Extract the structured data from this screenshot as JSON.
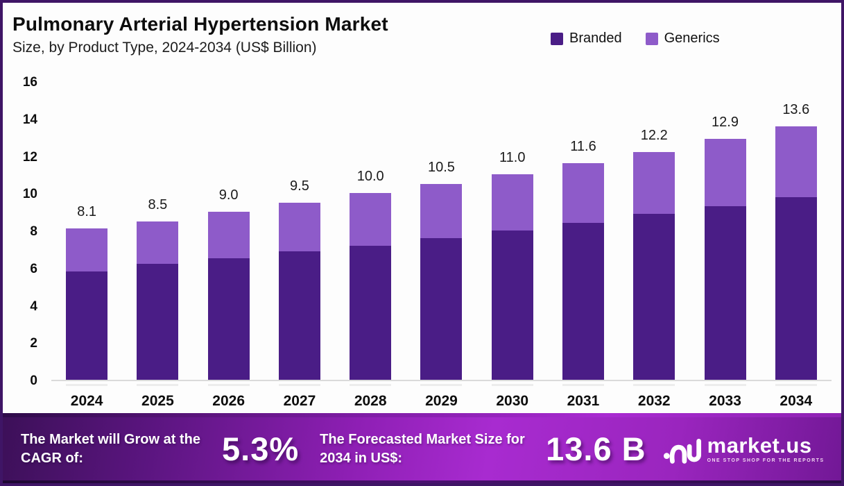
{
  "header": {
    "title": "Pulmonary Arterial Hypertension Market",
    "subtitle": "Size, by Product Type, 2024-2034 (US$ Billion)"
  },
  "colors": {
    "branded": "#4A1D86",
    "generics": "#8E5BC9",
    "frame_border": "#3F1566",
    "banner_mid": "#A82BD0"
  },
  "chart_data": {
    "type": "bar",
    "stacked": true,
    "title": "Pulmonary Arterial Hypertension Market Size, by Product Type, 2024-2034 (US$ Billion)",
    "categories": [
      "2024",
      "2025",
      "2026",
      "2027",
      "2028",
      "2029",
      "2030",
      "2031",
      "2032",
      "2033",
      "2034"
    ],
    "series": [
      {
        "name": "Branded",
        "color": "#4A1D86",
        "values": [
          5.8,
          6.2,
          6.5,
          6.9,
          7.2,
          7.6,
          8.0,
          8.4,
          8.9,
          9.3,
          9.8
        ]
      },
      {
        "name": "Generics",
        "color": "#8E5BC9",
        "values": [
          2.3,
          2.3,
          2.5,
          2.6,
          2.8,
          2.9,
          3.0,
          3.2,
          3.3,
          3.6,
          3.8
        ]
      }
    ],
    "total_labels": [
      "8.1",
      "8.5",
      "9.0",
      "9.5",
      "10.0",
      "10.5",
      "11.0",
      "11.6",
      "12.2",
      "12.9",
      "13.6"
    ],
    "xlabel": "",
    "ylabel": "",
    "ylim": [
      0,
      16
    ],
    "yticks": [
      0,
      2,
      4,
      6,
      8,
      10,
      12,
      14,
      16
    ],
    "grid": false,
    "legend_position": "top-right"
  },
  "legend": [
    {
      "label": "Branded",
      "color": "#4A1D86"
    },
    {
      "label": "Generics",
      "color": "#8E5BC9"
    }
  ],
  "footer": {
    "cagr_label": "The Market will Grow at the CAGR of:",
    "cagr_value": "5.3%",
    "forecast_label": "The Forecasted Market Size for 2034 in US$:",
    "forecast_value": "13.6 B",
    "brand_name": "market.us",
    "brand_tagline": "ONE STOP SHOP FOR THE REPORTS"
  }
}
